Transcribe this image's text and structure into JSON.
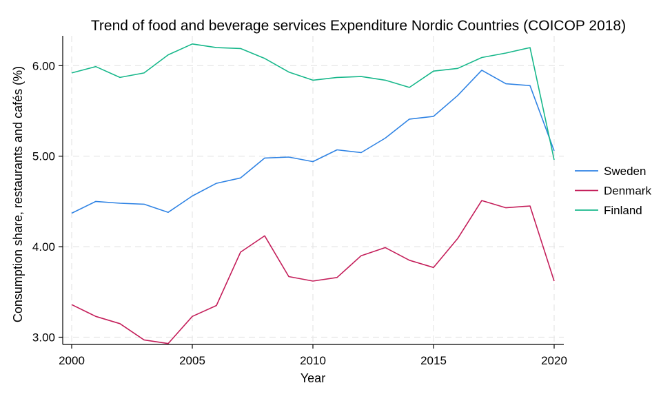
{
  "chart_data": {
    "type": "line",
    "title": "Trend of food and beverage services Expenditure Nordic Countries (COICOP 2018)",
    "xlabel": "Year",
    "ylabel": "Consumption share, restaurants and cafés (%)",
    "xlim": [
      2000,
      2020
    ],
    "ylim": [
      2.92,
      6.33
    ],
    "x_ticks": [
      {
        "value": 2000,
        "label": "2000"
      },
      {
        "value": 2005,
        "label": "2005"
      },
      {
        "value": 2010,
        "label": "2010"
      },
      {
        "value": 2015,
        "label": "2015"
      },
      {
        "value": 2020,
        "label": "2020"
      }
    ],
    "y_ticks": [
      {
        "value": 3.0,
        "label": "3.00"
      },
      {
        "value": 4.0,
        "label": "4.00"
      },
      {
        "value": 5.0,
        "label": "5.00"
      },
      {
        "value": 6.0,
        "label": "6.00"
      }
    ],
    "grid": true,
    "legend_position": "right",
    "x": [
      2000,
      2001,
      2002,
      2003,
      2004,
      2005,
      2006,
      2007,
      2008,
      2009,
      2010,
      2011,
      2012,
      2013,
      2014,
      2015,
      2016,
      2017,
      2018,
      2019,
      2020
    ],
    "series": [
      {
        "name": "Sweden",
        "color": "#2f83e4",
        "values": [
          4.37,
          4.5,
          4.48,
          4.47,
          4.38,
          4.56,
          4.7,
          4.76,
          4.98,
          4.99,
          4.94,
          5.07,
          5.04,
          5.2,
          5.41,
          5.44,
          5.67,
          5.95,
          5.8,
          5.78,
          5.06
        ]
      },
      {
        "name": "Denmark",
        "color": "#c41e5a",
        "values": [
          3.36,
          3.23,
          3.15,
          2.97,
          2.93,
          3.23,
          3.35,
          3.94,
          4.12,
          3.67,
          3.62,
          3.66,
          3.9,
          3.99,
          3.85,
          3.77,
          4.09,
          4.51,
          4.43,
          4.45,
          3.62
        ]
      },
      {
        "name": "Finland",
        "color": "#16b78a",
        "values": [
          5.92,
          5.99,
          5.87,
          5.92,
          6.12,
          6.24,
          6.2,
          6.19,
          6.08,
          5.93,
          5.84,
          5.87,
          5.88,
          5.84,
          5.76,
          5.94,
          5.97,
          6.09,
          6.14,
          6.2,
          4.96
        ]
      }
    ]
  }
}
